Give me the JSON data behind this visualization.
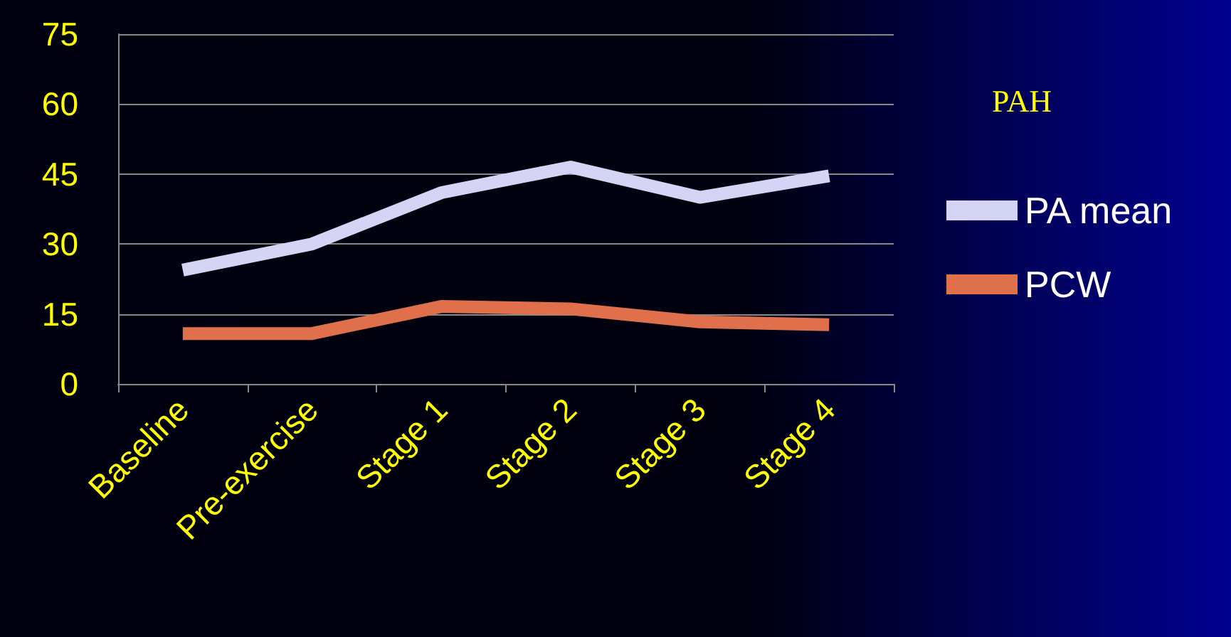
{
  "chart_data": {
    "type": "line",
    "legend_title": "PAH",
    "categories": [
      "Baseline",
      "Pre-exercise",
      "Stage 1",
      "Stage 2",
      "Stage 3",
      "Stage 4"
    ],
    "series": [
      {
        "name": "PA mean",
        "color": "#d4d4f4",
        "values": [
          24.4,
          30,
          41,
          46.5,
          40,
          44.6
        ]
      },
      {
        "name": "PCW",
        "color": "#e0704c",
        "values": [
          10.8,
          10.8,
          16.6,
          16.1,
          13.3,
          12.7
        ]
      }
    ],
    "ylim": [
      0,
      75
    ],
    "yticks": [
      0,
      15,
      30,
      45,
      60,
      75
    ],
    "grid": "y",
    "legend": "right",
    "marker": "none",
    "line_style": "solid"
  }
}
